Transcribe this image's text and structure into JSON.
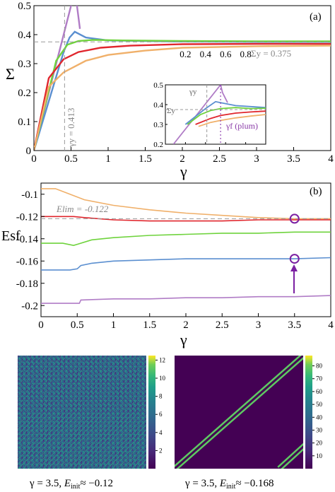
{
  "chart_data": [
    {
      "panel": "(a)",
      "type": "line",
      "xlabel": "γ",
      "ylabel": "Σ",
      "xlim": [
        0,
        4
      ],
      "ylim": [
        0,
        0.5
      ],
      "xticks": [
        "0",
        "0.5",
        "1",
        "1.5",
        "2",
        "2.5",
        "3",
        "3.5",
        "4"
      ],
      "yticks": [
        "0",
        "0.1",
        "0.2",
        "0.3",
        "0.4",
        "0.5"
      ],
      "annotations": {
        "sigma_y": "Σy = 0.375",
        "gamma_y": "γy = 0.413"
      },
      "colors": [
        "#b07cc6",
        "#5b8fd0",
        "#6fd33d",
        "#e0262d",
        "#f0b06a"
      ],
      "series": [
        {
          "color": "#b07cc6",
          "x": [
            0,
            0.55,
            0.58,
            0.62
          ],
          "y": [
            0,
            0.55,
            0.5,
            0.42
          ]
        },
        {
          "color": "#5b8fd0",
          "x": [
            0,
            0.4,
            0.48,
            0.55,
            0.7,
            1.0,
            1.5,
            2,
            3,
            4
          ],
          "y": [
            0,
            0.34,
            0.39,
            0.41,
            0.39,
            0.38,
            0.378,
            0.376,
            0.375,
            0.375
          ]
        },
        {
          "color": "#6fd33d",
          "x": [
            0,
            0.3,
            0.45,
            0.6,
            0.8,
            1.2,
            2,
            3,
            4
          ],
          "y": [
            0,
            0.31,
            0.365,
            0.378,
            0.382,
            0.38,
            0.378,
            0.377,
            0.377
          ]
        },
        {
          "color": "#e0262d",
          "x": [
            0,
            0.2,
            0.4,
            0.6,
            0.9,
            1.3,
            2,
            3,
            4
          ],
          "y": [
            0,
            0.25,
            0.315,
            0.34,
            0.355,
            0.362,
            0.367,
            0.368,
            0.368
          ]
        },
        {
          "color": "#f0b06a",
          "x": [
            0,
            0.2,
            0.4,
            0.7,
            1.0,
            1.5,
            2,
            3,
            4
          ],
          "y": [
            0,
            0.22,
            0.27,
            0.31,
            0.33,
            0.345,
            0.355,
            0.36,
            0.362
          ]
        }
      ],
      "inset": {
        "xlim": [
          0,
          1
        ],
        "ylim": [
          0.2,
          0.5
        ],
        "xticks": [
          "0.2",
          "0.4",
          "0.6",
          "0.8"
        ],
        "yticks": [
          "0.2",
          "0.3",
          "0.4",
          "0.5"
        ],
        "annotations": {
          "sigma_y": "Σy",
          "gamma_y": "γy",
          "gamma_f": "γf (plum)"
        },
        "series": [
          {
            "color": "#b07cc6",
            "x": [
              0.08,
              0.55,
              0.57,
              0.62
            ],
            "y": [
              0.2,
              0.5,
              0.46,
              0.41
            ]
          },
          {
            "color": "#5b8fd0",
            "x": [
              0.2,
              0.4,
              0.5,
              0.55,
              0.7,
              0.85,
              1.0
            ],
            "y": [
              0.3,
              0.38,
              0.415,
              0.41,
              0.395,
              0.39,
              0.385
            ]
          },
          {
            "color": "#6fd33d",
            "x": [
              0.22,
              0.35,
              0.45,
              0.55,
              0.7,
              0.85,
              1.0
            ],
            "y": [
              0.3,
              0.35,
              0.37,
              0.38,
              0.385,
              0.38,
              0.382
            ]
          },
          {
            "color": "#e0262d",
            "x": [
              0.3,
              0.45,
              0.55,
              0.7,
              0.85,
              1.0
            ],
            "y": [
              0.3,
              0.33,
              0.345,
              0.357,
              0.363,
              0.367
            ]
          },
          {
            "color": "#f0b06a",
            "x": [
              0.33,
              0.45,
              0.55,
              0.7,
              0.85,
              1.0
            ],
            "y": [
              0.29,
              0.31,
              0.32,
              0.333,
              0.342,
              0.35
            ]
          }
        ]
      }
    },
    {
      "panel": "(b)",
      "type": "line",
      "xlabel": "γ",
      "ylabel": "Esf",
      "xlim": [
        0,
        4
      ],
      "ylim": [
        -0.21,
        -0.09
      ],
      "xticks": [
        "0",
        "0.5",
        "1",
        "1.5",
        "2",
        "2.5",
        "3",
        "3.5",
        "4"
      ],
      "yticks": [
        "-0.1",
        "-0.12",
        "-0.14",
        "-0.16",
        "-0.18",
        "-0.2"
      ],
      "annotations": {
        "e_lim": "Elim = -0.122"
      },
      "series": [
        {
          "color": "#f0b06a",
          "x": [
            0,
            0.2,
            0.4,
            0.6,
            1.0,
            1.5,
            2.0,
            2.5,
            3.0,
            3.5,
            4.0
          ],
          "y": [
            -0.095,
            -0.095,
            -0.1,
            -0.105,
            -0.11,
            -0.114,
            -0.117,
            -0.119,
            -0.121,
            -0.122,
            -0.122
          ]
        },
        {
          "color": "#e0262d",
          "x": [
            0,
            0.3,
            0.45,
            0.6,
            1.0,
            1.5,
            2.0,
            2.5,
            3.0,
            3.5,
            4.0
          ],
          "y": [
            -0.12,
            -0.12,
            -0.12,
            -0.121,
            -0.123,
            -0.124,
            -0.124,
            -0.124,
            -0.123,
            -0.123,
            -0.123
          ]
        },
        {
          "color": "#6fd33d",
          "x": [
            0,
            0.3,
            0.45,
            0.5,
            0.7,
            1.0,
            1.5,
            2.0,
            2.5,
            3.0,
            3.5,
            4.0
          ],
          "y": [
            -0.144,
            -0.144,
            -0.146,
            -0.145,
            -0.141,
            -0.139,
            -0.137,
            -0.136,
            -0.135,
            -0.135,
            -0.134,
            -0.134
          ]
        },
        {
          "color": "#5b8fd0",
          "x": [
            0,
            0.4,
            0.5,
            0.55,
            0.7,
            1.0,
            1.5,
            2.0,
            2.5,
            3.0,
            3.5,
            4.0
          ],
          "y": [
            -0.168,
            -0.168,
            -0.167,
            -0.164,
            -0.162,
            -0.16,
            -0.159,
            -0.158,
            -0.158,
            -0.158,
            -0.158,
            -0.157
          ]
        },
        {
          "color": "#b07cc6",
          "x": [
            0,
            0.5,
            0.53,
            0.55,
            1.0,
            1.5,
            2.0,
            2.5,
            3.0,
            3.5,
            4.0
          ],
          "y": [
            -0.198,
            -0.198,
            -0.198,
            -0.195,
            -0.194,
            -0.194,
            -0.193,
            -0.193,
            -0.192,
            -0.192,
            -0.191
          ]
        }
      ],
      "markers": [
        {
          "x": 3.5,
          "y": -0.122,
          "color": "#7b1fa2"
        },
        {
          "x": 3.5,
          "y": -0.158,
          "color": "#7b1fa2"
        }
      ]
    },
    {
      "type": "heatmap",
      "caption_parts": {
        "gamma": "γ = 3.5,",
        "e_label": "E",
        "e_sub": "init",
        "e_val": "≈ −0.12"
      },
      "colorbar_ticks": [
        "12",
        "10",
        "8",
        "6",
        "4",
        "2"
      ],
      "colorbar_range": [
        0,
        12.5
      ]
    },
    {
      "type": "heatmap",
      "caption_parts": {
        "gamma": "γ = 3.5,",
        "e_label": "E",
        "e_sub": "init",
        "e_val": "≈ −0.168"
      },
      "colorbar_ticks": [
        "80",
        "70",
        "60",
        "50",
        "40",
        "30",
        "20",
        "10"
      ],
      "colorbar_range": [
        0,
        88
      ]
    }
  ]
}
